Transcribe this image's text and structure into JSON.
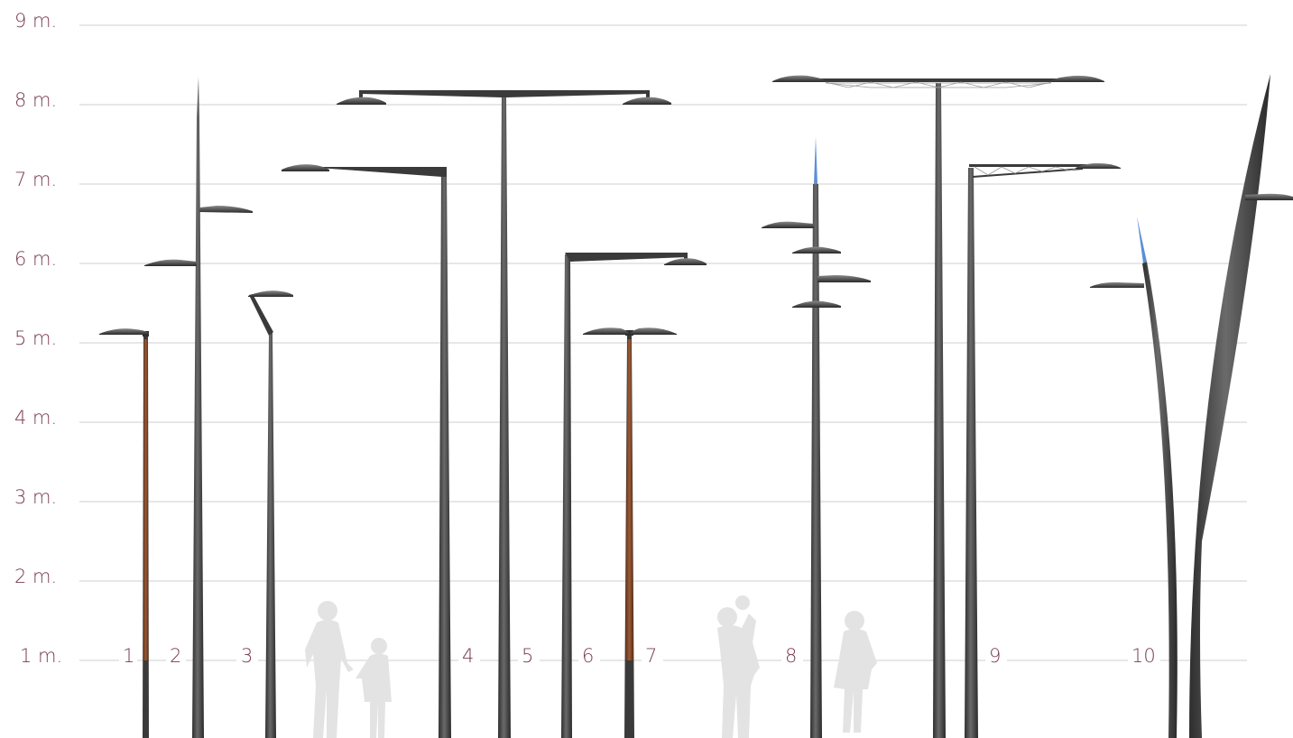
{
  "diagram": {
    "height_labels": [
      "1 m.",
      "2 m.",
      "3 m.",
      "4 m.",
      "5 m.",
      "6 m.",
      "7 m.",
      "8 m.",
      "9 m."
    ],
    "pole_numbers": [
      "1",
      "2",
      "3",
      "4",
      "5",
      "6",
      "7",
      "8",
      "9",
      "10"
    ],
    "colors": {
      "label": "#7a3b55",
      "grid": "#cfcfcf",
      "pole": "#4a4a4a",
      "wood": "#8a4a2a",
      "tip": "#5b8fd6",
      "silhouette": "#e3e3e3"
    },
    "scale": {
      "unit": "m",
      "pole_heights": [
        5.1,
        8.4,
        5.6,
        7.2,
        8.1,
        6.1,
        5.1,
        7.6,
        8.3,
        8.5
      ]
    }
  }
}
